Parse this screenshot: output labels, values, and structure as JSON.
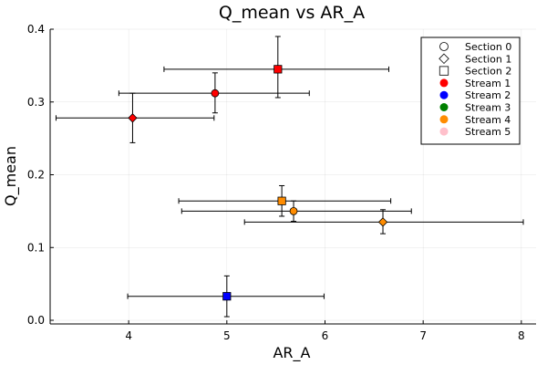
{
  "chart_data": {
    "type": "scatter",
    "title": "Q_mean vs AR_A",
    "xlabel": "AR_A",
    "ylabel": "Q_mean",
    "xlim": [
      3.2,
      8.15
    ],
    "ylim": [
      -0.005,
      0.4
    ],
    "xticks": [
      4,
      5,
      6,
      7,
      8
    ],
    "yticks": [
      0.0,
      0.1,
      0.2,
      0.3,
      0.4
    ],
    "ytick_labels": [
      "0.0",
      "0.1",
      "0.2",
      "0.3",
      "0.4"
    ],
    "grid": true,
    "legend_position": "top-right",
    "legend": [
      {
        "label": "Section 0",
        "kind": "marker",
        "shape": "circle"
      },
      {
        "label": "Section 1",
        "kind": "marker",
        "shape": "diamond"
      },
      {
        "label": "Section 2",
        "kind": "marker",
        "shape": "square"
      },
      {
        "label": "Stream 1",
        "kind": "color",
        "color": "#ff0000"
      },
      {
        "label": "Stream 2",
        "kind": "color",
        "color": "#0000ff"
      },
      {
        "label": "Stream 3",
        "kind": "color",
        "color": "#008000"
      },
      {
        "label": "Stream 4",
        "kind": "color",
        "color": "#ff8c00"
      },
      {
        "label": "Stream 5",
        "kind": "color",
        "color": "#ffc0cb"
      }
    ],
    "points": [
      {
        "section": "Section 0",
        "stream": "Stream 1",
        "shape": "circle",
        "color": "#ff0000",
        "x": 4.88,
        "y": 0.312,
        "x_err": [
          3.9,
          5.84
        ],
        "y_err": [
          0.285,
          0.34
        ]
      },
      {
        "section": "Section 1",
        "stream": "Stream 1",
        "shape": "diamond",
        "color": "#ff0000",
        "x": 4.04,
        "y": 0.278,
        "x_err": [
          3.26,
          4.87
        ],
        "y_err": [
          0.244,
          0.312
        ]
      },
      {
        "section": "Section 2",
        "stream": "Stream 1",
        "shape": "square",
        "color": "#ff0000",
        "x": 5.52,
        "y": 0.345,
        "x_err": [
          4.36,
          6.65
        ],
        "y_err": [
          0.306,
          0.39
        ]
      },
      {
        "section": "Section 2",
        "stream": "Stream 2",
        "shape": "square",
        "color": "#0000ff",
        "x": 5.0,
        "y": 0.033,
        "x_err": [
          3.99,
          5.99
        ],
        "y_err": [
          0.005,
          0.061
        ]
      },
      {
        "section": "Section 2",
        "stream": "Stream 4",
        "shape": "square",
        "color": "#ff8c00",
        "x": 5.56,
        "y": 0.164,
        "x_err": [
          4.51,
          6.67
        ],
        "y_err": [
          0.143,
          0.185
        ]
      },
      {
        "section": "Section 0",
        "stream": "Stream 4",
        "shape": "circle",
        "color": "#ff8c00",
        "x": 5.68,
        "y": 0.15,
        "x_err": [
          4.54,
          6.88
        ],
        "y_err": [
          0.136,
          0.164
        ]
      },
      {
        "section": "Section 1",
        "stream": "Stream 4",
        "shape": "diamond",
        "color": "#ff8c00",
        "x": 6.59,
        "y": 0.135,
        "x_err": [
          5.18,
          8.02
        ],
        "y_err": [
          0.119,
          0.152
        ]
      }
    ]
  }
}
